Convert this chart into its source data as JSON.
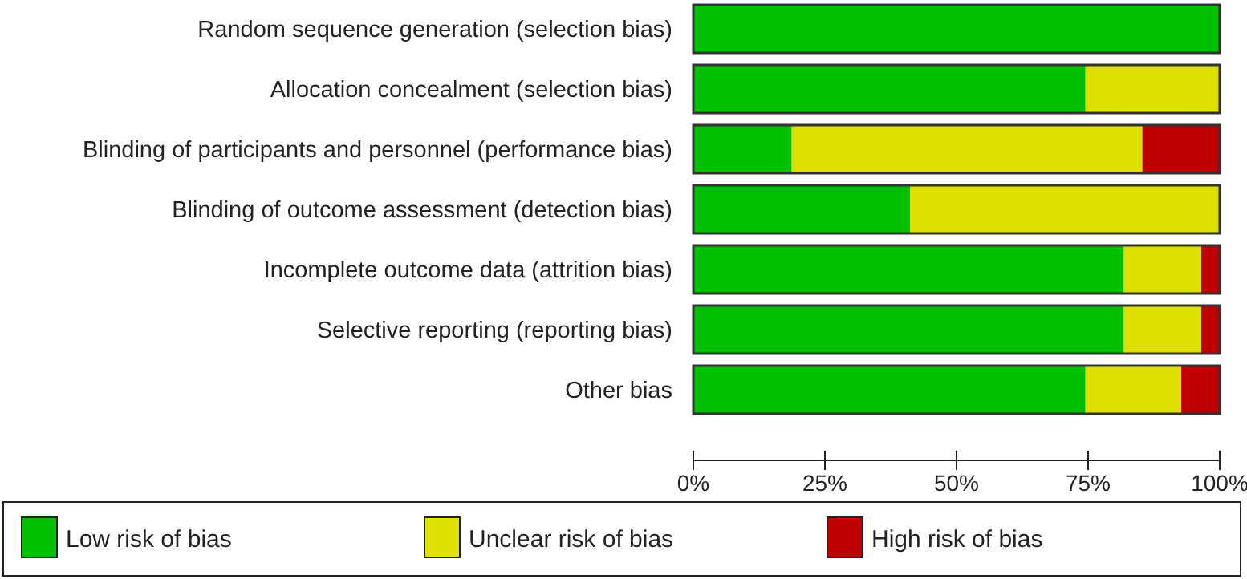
{
  "chart_data": {
    "type": "bar",
    "orientation": "horizontal",
    "stacked": true,
    "categories": [
      "Random sequence generation (selection bias)",
      "Allocation concealment (selection bias)",
      "Blinding of participants and personnel (performance bias)",
      "Blinding of outcome assessment (detection bias)",
      "Incomplete outcome data (attrition bias)",
      "Selective reporting (reporting bias)",
      "Other bias"
    ],
    "series": [
      {
        "name": "Low risk of bias",
        "color": "#00c000",
        "values": [
          100,
          74.5,
          18.7,
          41.2,
          81.8,
          81.8,
          74.5
        ]
      },
      {
        "name": "Unclear risk of bias",
        "color": "#e0e000",
        "values": [
          0,
          25.5,
          66.6,
          58.8,
          14.7,
          14.7,
          18.2
        ]
      },
      {
        "name": "High risk of bias",
        "color": "#c00000",
        "values": [
          0,
          0,
          14.7,
          0,
          3.5,
          3.5,
          7.3
        ]
      }
    ],
    "xlim": [
      0,
      100
    ],
    "xticks": [
      {
        "value": 0,
        "label": "0%"
      },
      {
        "value": 25,
        "label": "25%"
      },
      {
        "value": 50,
        "label": "50%"
      },
      {
        "value": 75,
        "label": "75%"
      },
      {
        "value": 100,
        "label": "100%"
      }
    ],
    "legend": "bottom",
    "grid": false
  }
}
